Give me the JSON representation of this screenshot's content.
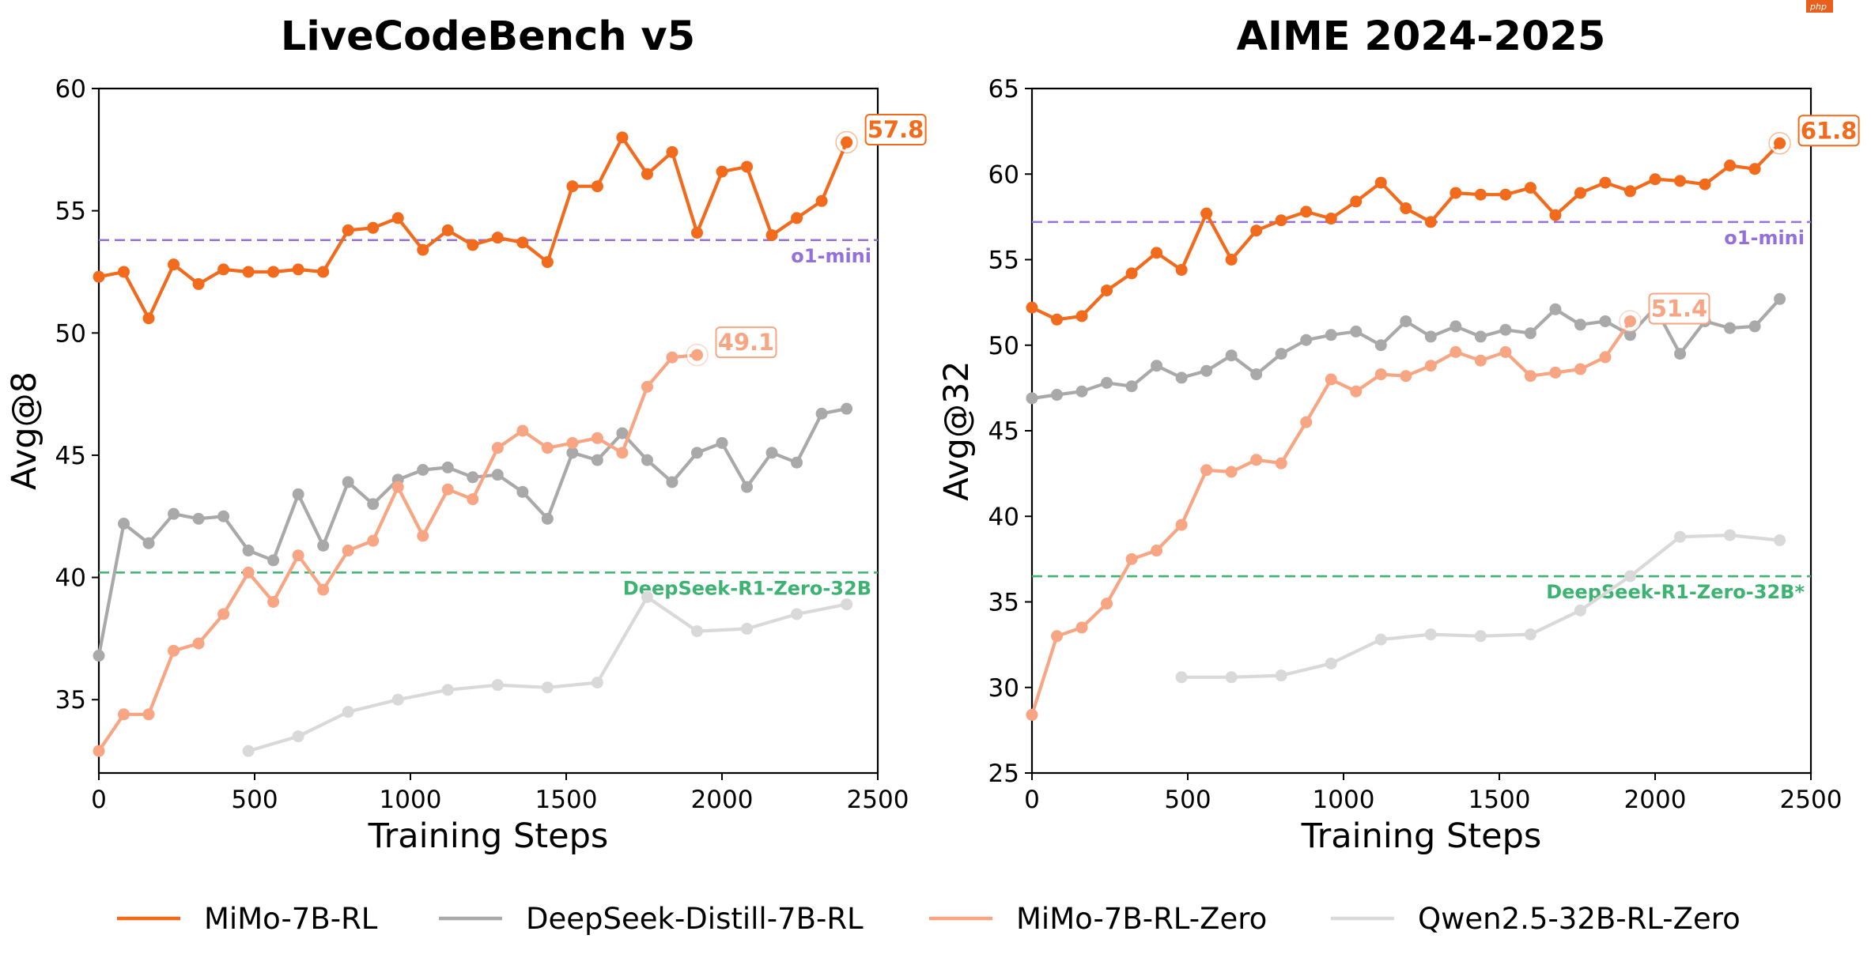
{
  "watermark": "php",
  "legend": [
    {
      "label": "MiMo-7B-RL",
      "color": "#f26a1b",
      "marker": false
    },
    {
      "label": "DeepSeek-Distill-7B-RL",
      "color": "#a9a9a9",
      "marker": false
    },
    {
      "label": "MiMo-7B-RL-Zero",
      "color": "#f7a582",
      "marker": false
    },
    {
      "label": "Qwen2.5-32B-RL-Zero",
      "color": "#d9d9d9",
      "marker": false
    }
  ],
  "chart_data": [
    {
      "type": "line",
      "title": "LiveCodeBench v5",
      "xlabel": "Training Steps",
      "ylabel": "Avg@8",
      "xlim": [
        0,
        2500
      ],
      "ylim": [
        32,
        60
      ],
      "xticks": [
        "0",
        "500",
        "1000",
        "1500",
        "2000",
        "2500"
      ],
      "yticks": [
        "35",
        "40",
        "45",
        "50",
        "55",
        "60"
      ],
      "reference_lines": [
        {
          "name": "o1-mini",
          "value": 53.8,
          "color": "#9370db"
        },
        {
          "name": "DeepSeek-R1-Zero-32B",
          "value": 40.2,
          "color": "#3cb371"
        }
      ],
      "series": [
        {
          "name": "MiMo-7B-RL",
          "color": "#f26a1b",
          "end_label": "57.8",
          "x": [
            0,
            80,
            160,
            240,
            320,
            400,
            480,
            560,
            640,
            720,
            800,
            880,
            960,
            1040,
            1120,
            1200,
            1280,
            1360,
            1440,
            1520,
            1600,
            1680,
            1760,
            1840,
            1920,
            2000,
            2080,
            2160,
            2240,
            2320,
            2400
          ],
          "y": [
            52.3,
            52.5,
            50.6,
            52.8,
            52.0,
            52.6,
            52.5,
            52.5,
            52.6,
            52.5,
            54.2,
            54.3,
            54.7,
            53.4,
            54.2,
            53.6,
            53.9,
            53.7,
            52.9,
            56.0,
            56.0,
            58.0,
            56.5,
            57.4,
            54.1,
            56.6,
            56.8,
            54.0,
            54.7,
            55.4,
            57.8
          ]
        },
        {
          "name": "DeepSeek-Distill-7B-RL",
          "color": "#a9a9a9",
          "end_label": "",
          "x": [
            0,
            80,
            160,
            240,
            320,
            400,
            480,
            560,
            640,
            720,
            800,
            880,
            960,
            1040,
            1120,
            1200,
            1280,
            1360,
            1440,
            1520,
            1600,
            1680,
            1760,
            1840,
            1920,
            2000,
            2080,
            2160,
            2240,
            2320,
            2400
          ],
          "y": [
            36.8,
            42.2,
            41.4,
            42.6,
            42.4,
            42.5,
            41.1,
            40.7,
            43.4,
            41.3,
            43.9,
            43.0,
            44.0,
            44.4,
            44.5,
            44.1,
            44.2,
            43.5,
            42.4,
            45.1,
            44.8,
            45.9,
            44.8,
            43.9,
            45.1,
            45.5,
            43.7,
            45.1,
            44.7,
            46.7,
            46.9
          ]
        },
        {
          "name": "MiMo-7B-RL-Zero",
          "color": "#f7a582",
          "end_label": "49.1",
          "x": [
            0,
            80,
            160,
            240,
            320,
            400,
            480,
            560,
            640,
            720,
            800,
            880,
            960,
            1040,
            1120,
            1200,
            1280,
            1360,
            1440,
            1520,
            1600,
            1680,
            1760,
            1840,
            1920
          ],
          "y": [
            32.9,
            34.4,
            34.4,
            37.0,
            37.3,
            38.5,
            40.2,
            39.0,
            40.9,
            39.5,
            41.1,
            41.5,
            43.7,
            41.7,
            43.6,
            43.2,
            45.3,
            46.0,
            45.3,
            45.5,
            45.7,
            45.1,
            47.8,
            49.0,
            49.1
          ]
        },
        {
          "name": "Qwen2.5-32B-RL-Zero",
          "color": "#d9d9d9",
          "end_label": "",
          "x": [
            480,
            640,
            800,
            960,
            1120,
            1280,
            1440,
            1600,
            1760,
            1920,
            2080,
            2240,
            2400
          ],
          "y": [
            32.9,
            33.5,
            34.5,
            35.0,
            35.4,
            35.6,
            35.5,
            35.7,
            39.2,
            37.8,
            37.9,
            38.5,
            38.9
          ]
        }
      ]
    },
    {
      "type": "line",
      "title": "AIME 2024-2025",
      "xlabel": "Training Steps",
      "ylabel": "Avg@32",
      "xlim": [
        0,
        2500
      ],
      "ylim": [
        25,
        65
      ],
      "xticks": [
        "0",
        "500",
        "1000",
        "1500",
        "2000",
        "2500"
      ],
      "yticks": [
        "25",
        "30",
        "35",
        "40",
        "45",
        "50",
        "55",
        "60",
        "65"
      ],
      "reference_lines": [
        {
          "name": "o1-mini",
          "value": 57.2,
          "color": "#9370db"
        },
        {
          "name": "DeepSeek-R1-Zero-32B*",
          "value": 36.5,
          "color": "#3cb371"
        }
      ],
      "series": [
        {
          "name": "MiMo-7B-RL",
          "color": "#f26a1b",
          "end_label": "61.8",
          "x": [
            0,
            80,
            160,
            240,
            320,
            400,
            480,
            560,
            640,
            720,
            800,
            880,
            960,
            1040,
            1120,
            1200,
            1280,
            1360,
            1440,
            1520,
            1600,
            1680,
            1760,
            1840,
            1920,
            2000,
            2080,
            2160,
            2240,
            2320,
            2400
          ],
          "y": [
            52.2,
            51.5,
            51.7,
            53.2,
            54.2,
            55.4,
            54.4,
            57.7,
            55.0,
            56.7,
            57.3,
            57.8,
            57.4,
            58.4,
            59.5,
            58.0,
            57.2,
            58.9,
            58.8,
            58.8,
            59.2,
            57.6,
            58.9,
            59.5,
            59.0,
            59.7,
            59.6,
            59.4,
            60.5,
            60.3,
            61.8
          ]
        },
        {
          "name": "DeepSeek-Distill-7B-RL",
          "color": "#a9a9a9",
          "end_label": "",
          "x": [
            0,
            80,
            160,
            240,
            320,
            400,
            480,
            560,
            640,
            720,
            800,
            880,
            960,
            1040,
            1120,
            1200,
            1280,
            1360,
            1440,
            1520,
            1600,
            1680,
            1760,
            1840,
            1920,
            2000,
            2080,
            2160,
            2240,
            2320,
            2400
          ],
          "y": [
            46.9,
            47.1,
            47.3,
            47.8,
            47.6,
            48.8,
            48.1,
            48.5,
            49.4,
            48.3,
            49.5,
            50.3,
            50.6,
            50.8,
            50.0,
            51.4,
            50.5,
            51.1,
            50.5,
            50.9,
            50.7,
            52.1,
            51.2,
            51.4,
            50.6,
            52.2,
            49.5,
            51.4,
            51.0,
            51.1,
            52.7
          ]
        },
        {
          "name": "MiMo-7B-RL-Zero",
          "color": "#f7a582",
          "end_label": "51.4",
          "x": [
            0,
            80,
            160,
            240,
            320,
            400,
            480,
            560,
            640,
            720,
            800,
            880,
            960,
            1040,
            1120,
            1200,
            1280,
            1360,
            1440,
            1520,
            1600,
            1680,
            1760,
            1840,
            1920
          ],
          "y": [
            28.4,
            33.0,
            33.5,
            34.9,
            37.5,
            38.0,
            39.5,
            42.7,
            42.6,
            43.3,
            43.1,
            45.5,
            48.0,
            47.3,
            48.3,
            48.2,
            48.8,
            49.6,
            49.1,
            49.6,
            48.2,
            48.4,
            48.6,
            49.3,
            51.4
          ]
        },
        {
          "name": "Qwen2.5-32B-RL-Zero",
          "color": "#d9d9d9",
          "end_label": "",
          "x": [
            480,
            640,
            800,
            960,
            1120,
            1280,
            1440,
            1600,
            1760,
            1920,
            2080,
            2240,
            2400
          ],
          "y": [
            30.6,
            30.6,
            30.7,
            31.4,
            32.8,
            33.1,
            33.0,
            33.1,
            34.5,
            36.5,
            38.8,
            38.9,
            38.6
          ]
        }
      ]
    }
  ]
}
